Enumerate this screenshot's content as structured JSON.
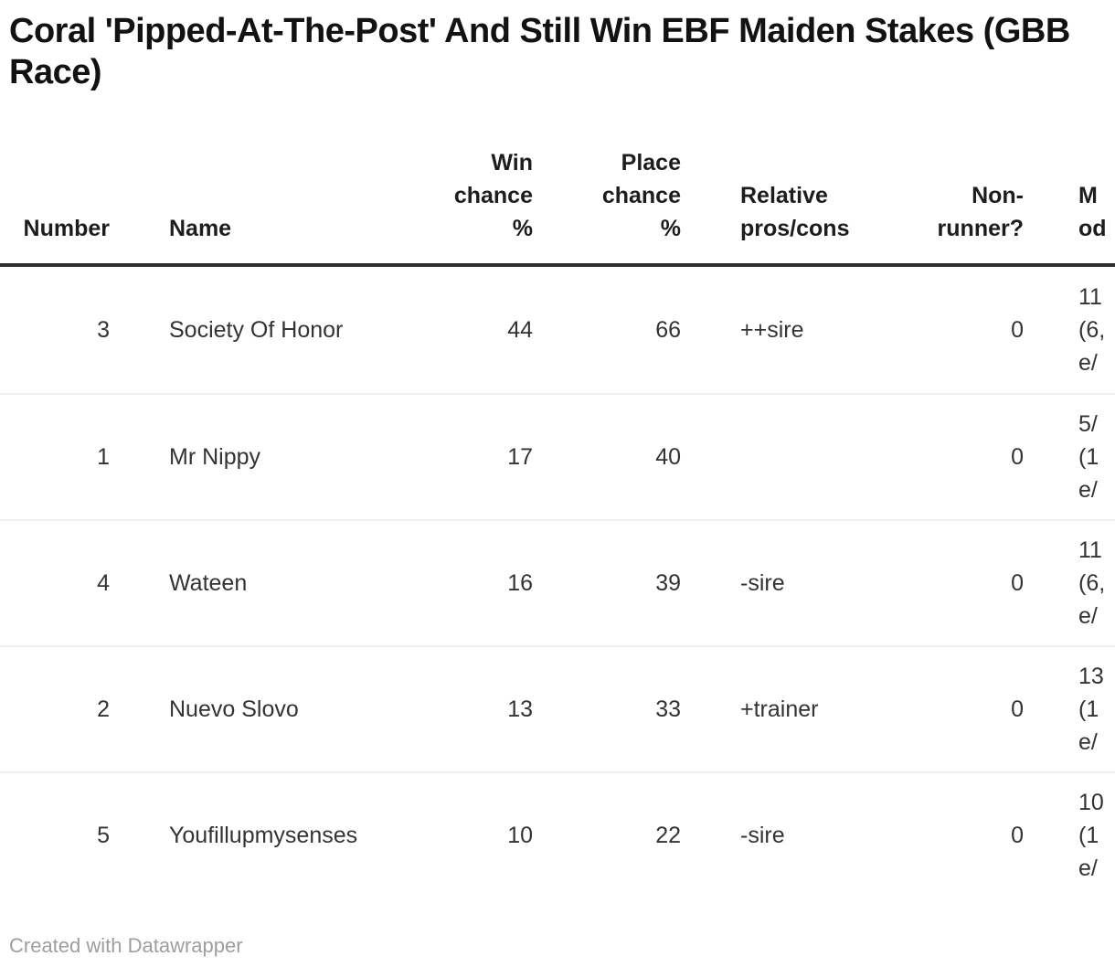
{
  "chart_data": {
    "type": "table",
    "title": "Coral 'Pipped-At-The-Post' And Still Win EBF Maiden Stakes (GBB Race)",
    "columns": [
      {
        "label": "Number",
        "align": "right"
      },
      {
        "label": "Name",
        "align": "left"
      },
      {
        "label": "Win\nchance\n%",
        "align": "right"
      },
      {
        "label": "Place\nchance\n%",
        "align": "right"
      },
      {
        "label": "Relative\npros/cons",
        "align": "left"
      },
      {
        "label": "Non-\nrunner?",
        "align": "right"
      },
      {
        "label": "M\nod",
        "align": "left",
        "note": "column clipped at right edge of viewport"
      }
    ],
    "rows": [
      {
        "number": "3",
        "name": "Society Of Honor",
        "win_chance_pct": "44",
        "place_chance_pct": "66",
        "pros_cons": "++sire",
        "non_runner": "0",
        "odds_clipped": "11\n(6,\ne/"
      },
      {
        "number": "1",
        "name": "Mr Nippy",
        "win_chance_pct": "17",
        "place_chance_pct": "40",
        "pros_cons": "",
        "non_runner": "0",
        "odds_clipped": "5/\n(1\ne/"
      },
      {
        "number": "4",
        "name": "Wateen",
        "win_chance_pct": "16",
        "place_chance_pct": "39",
        "pros_cons": "-sire",
        "non_runner": "0",
        "odds_clipped": "11\n(6,\ne/"
      },
      {
        "number": "2",
        "name": "Nuevo Slovo",
        "win_chance_pct": "13",
        "place_chance_pct": "33",
        "pros_cons": "+trainer",
        "non_runner": "0",
        "odds_clipped": "13\n(1\ne/"
      },
      {
        "number": "5",
        "name": "Youfillupmysenses",
        "win_chance_pct": "10",
        "place_chance_pct": "22",
        "pros_cons": "-sire",
        "non_runner": "0",
        "odds_clipped": "10\n(1\ne/"
      }
    ],
    "footer_credit": "Created with Datawrapper",
    "layout_hints": {
      "grid": "off",
      "header_rule_color": "#2f2f2f",
      "row_separator_color": "#eeeeee"
    }
  }
}
